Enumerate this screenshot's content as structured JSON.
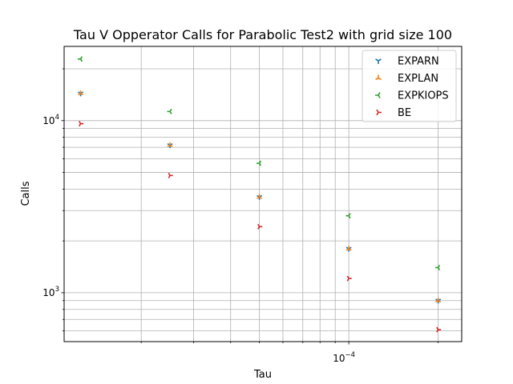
{
  "chart_data": {
    "type": "scatter",
    "title": "Tau V Opperator Calls for Parabolic Test2 with grid size 100",
    "xlabel": "Tau",
    "ylabel": "Calls",
    "xscale": "log",
    "yscale": "log",
    "xlim": [
      1.1e-05,
      0.00024
    ],
    "ylim": [
      520,
      27000
    ],
    "grid": true,
    "legend_position": "top-right",
    "x_tick_labels": [
      {
        "value": 0.0001,
        "label": "10",
        "exp": "−4"
      }
    ],
    "y_tick_labels": [
      {
        "value": 1000,
        "label": "10",
        "exp": "3"
      },
      {
        "value": 10000,
        "label": "10",
        "exp": "4"
      }
    ],
    "series": [
      {
        "name": "EXPARN",
        "color": "#1f77b4",
        "marker": "tri_down",
        "x": [
          1.25e-05,
          2.5e-05,
          5e-05,
          0.0001,
          0.0002
        ],
        "y": [
          14400,
          7200,
          3600,
          1800,
          900
        ]
      },
      {
        "name": "EXPLAN",
        "color": "#ff7f0e",
        "marker": "tri_up",
        "x": [
          1.25e-05,
          2.5e-05,
          5e-05,
          0.0001,
          0.0002
        ],
        "y": [
          14400,
          7200,
          3600,
          1800,
          900
        ]
      },
      {
        "name": "EXPKIOPS",
        "color": "#2ca02c",
        "marker": "tri_left",
        "x": [
          1.25e-05,
          2.5e-05,
          5e-05,
          0.0001,
          0.0002
        ],
        "y": [
          22800,
          11300,
          5650,
          2800,
          1400
        ]
      },
      {
        "name": "BE",
        "color": "#d62728",
        "marker": "tri_right",
        "x": [
          1.25e-05,
          2.5e-05,
          5e-05,
          0.0001,
          0.0002
        ],
        "y": [
          9600,
          4800,
          2420,
          1210,
          610
        ]
      }
    ]
  }
}
